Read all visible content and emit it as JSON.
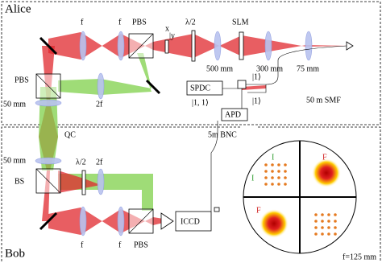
{
  "labels": [
    "Alice",
    "f",
    "f",
    "PBS",
    "x",
    "|y",
    "λ/2",
    "SLM",
    "500 mm",
    "300 mm",
    "75 mm",
    "PBS",
    "50 mm",
    "2f",
    "SPDC",
    "|1, 1⟩",
    "|1⟩",
    "|1⟩",
    "APD",
    "50 m SMF",
    "QC",
    "5m BNC",
    "50 mm",
    "BS",
    "λ/2",
    "2f",
    "f",
    "f",
    "PBS",
    "ICCD",
    "I",
    "F",
    "F",
    "I",
    "f=125 mm",
    "Bob"
  ]
}
